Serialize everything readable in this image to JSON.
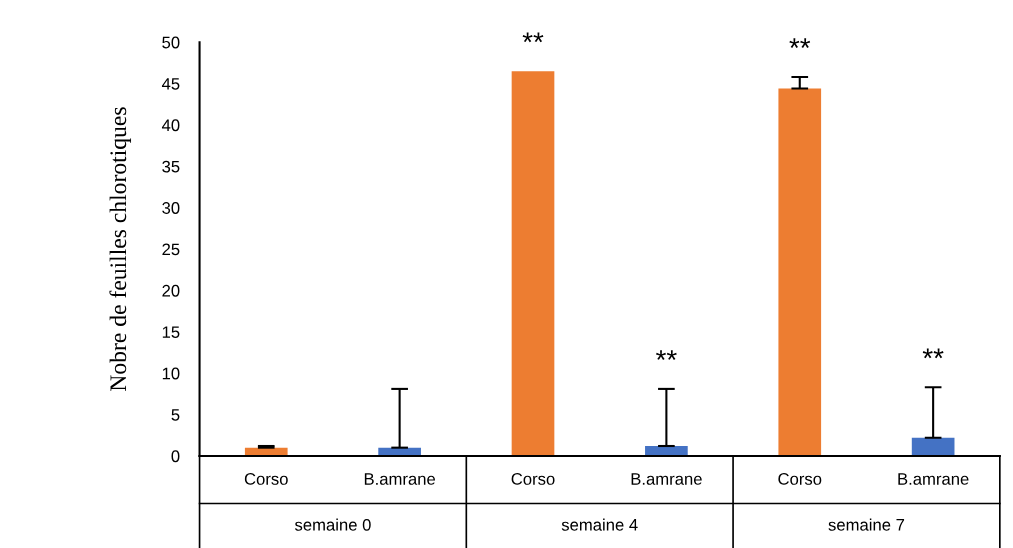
{
  "chart_data": {
    "type": "bar",
    "ylabel": "Nobre de feuilles chlorotiques",
    "categories": [
      "Corso",
      "B.amrane",
      "Corso",
      "B.amrane",
      "Corso",
      "B.amrane"
    ],
    "values": [
      1.0,
      1.0,
      46.5,
      1.2,
      44.4,
      2.2
    ],
    "colors": [
      "#ed7d31",
      "#4472c4",
      "#ed7d31",
      "#4472c4",
      "#ed7d31",
      "#4472c4"
    ],
    "errors": [
      [
        1.0,
        1.2
      ],
      [
        1.0,
        8.1
      ],
      null,
      [
        1.2,
        8.1
      ],
      [
        44.4,
        45.8
      ],
      [
        2.2,
        8.3
      ]
    ],
    "ylim": [
      0,
      50
    ],
    "yticks": [
      0,
      5,
      10,
      15,
      20,
      25,
      30,
      35,
      40,
      45,
      50
    ],
    "grid": false,
    "legend": false,
    "value_labels": [
      null,
      null,
      "**",
      "**",
      "**",
      "**"
    ],
    "annotations": [
      "semaine 0",
      "semaine 4",
      "semaine 7"
    ]
  }
}
